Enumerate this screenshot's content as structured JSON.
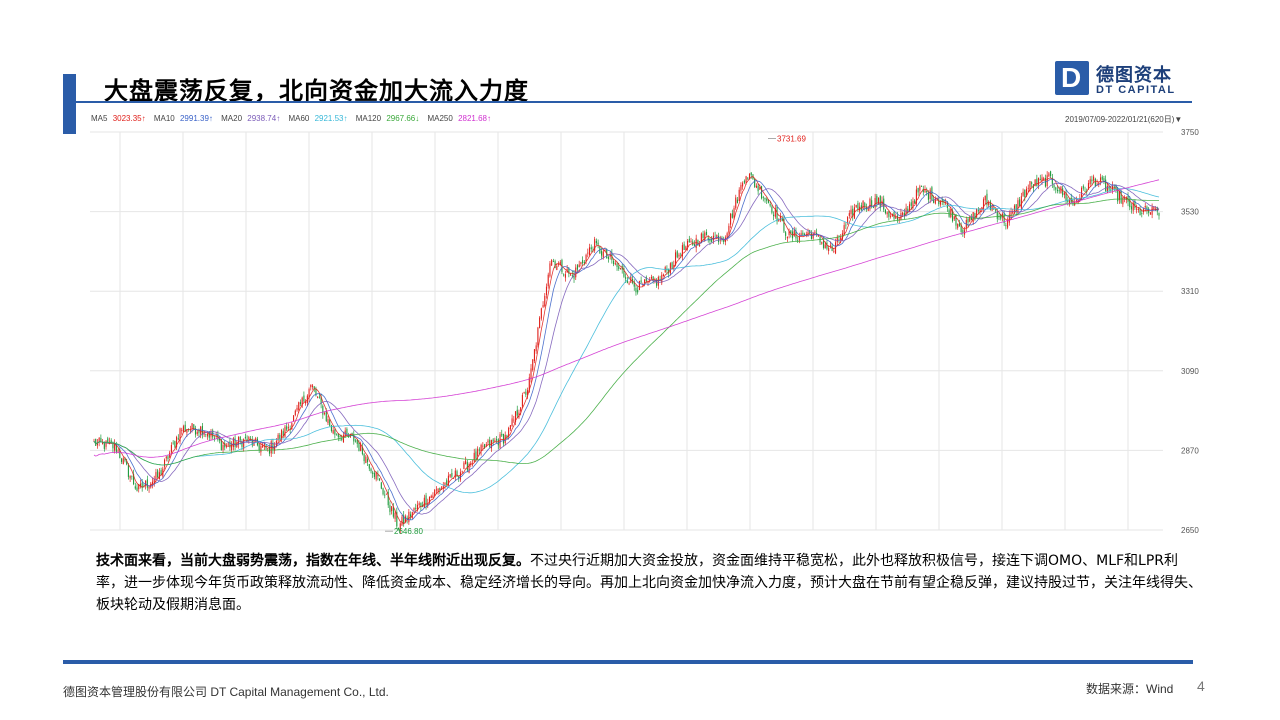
{
  "header": {
    "title": "大盘震荡反复，北向资金加大流入力度",
    "logo_cn": "德图资本",
    "logo_en": "DT CAPITAL",
    "logo_mark": "D"
  },
  "legend": {
    "items": [
      {
        "label": "MA5",
        "value": "3023.35↑",
        "color": "#000000",
        "value_color": "#e0201b"
      },
      {
        "label": "MA10",
        "value": "2991.39↑",
        "color": "#000000",
        "value_color": "#3a62c8"
      },
      {
        "label": "MA20",
        "value": "2938.74↑",
        "color": "#000000",
        "value_color": "#7a5ab8"
      },
      {
        "label": "MA60",
        "value": "2921.53↑",
        "color": "#000000",
        "value_color": "#38b8d8"
      },
      {
        "label": "MA120",
        "value": "2967.66↓",
        "color": "#000000",
        "value_color": "#3aa83a"
      },
      {
        "label": "MA250",
        "value": "2821.68↑",
        "color": "#000000",
        "value_color": "#d030d0"
      }
    ],
    "date_range": "2019/07/09-2022/01/21(620日)▼"
  },
  "chart_data": {
    "type": "candlestick",
    "title": "",
    "ylim": [
      2650,
      3750
    ],
    "y_ticks": [
      "3750",
      "3530",
      "3310",
      "3090",
      "2870",
      "2650"
    ],
    "annotations": {
      "high_label": "3731.69",
      "low_label": "2646.80",
      "high_value": 3731.69,
      "low_value": 2646.8
    },
    "anchor_closes": [
      2890,
      2880,
      2760,
      2800,
      2930,
      2930,
      2880,
      2900,
      2870,
      2940,
      3050,
      2920,
      2900,
      2800,
      2660,
      2720,
      2770,
      2820,
      2880,
      2910,
      3050,
      3400,
      3350,
      3440,
      3380,
      3320,
      3340,
      3420,
      3460,
      3460,
      3640,
      3560,
      3460,
      3470,
      3420,
      3540,
      3560,
      3500,
      3590,
      3560,
      3480,
      3560,
      3500,
      3600,
      3620,
      3550,
      3620,
      3580,
      3530,
      3530
    ],
    "ma_series": [
      {
        "name": "MA5",
        "color": "#e0201b"
      },
      {
        "name": "MA10",
        "color": "#3a62c8"
      },
      {
        "name": "MA20",
        "color": "#7a5ab8"
      },
      {
        "name": "MA60",
        "color": "#38b8d8"
      },
      {
        "name": "MA120",
        "color": "#3aa83a"
      },
      {
        "name": "MA250",
        "color": "#d030d0"
      }
    ],
    "colors": {
      "up": "#e0201b",
      "down": "#1e9a3c",
      "grid": "#e6e6e6",
      "axis_text": "#555555"
    }
  },
  "body": {
    "bold": "技术面来看，当前大盘弱势震荡，指数在年线、半年线附近出现反复。",
    "rest": "不过央行近期加大资金投放，资金面维持平稳宽松，此外也释放积极信号，接连下调OMO、MLF和LPR利率，进一步体现今年货币政策释放流动性、降低资金成本、稳定经济增长的导向。再加上北向资金加快净流入力度，预计大盘在节前有望企稳反弹，建议持股过节，关注年线得失、板块轮动及假期消息面。"
  },
  "footer": {
    "company": "德图资本管理股份有限公司  DT Capital Management  Co., Ltd.",
    "source": "数据来源：Wind",
    "page": "4"
  }
}
